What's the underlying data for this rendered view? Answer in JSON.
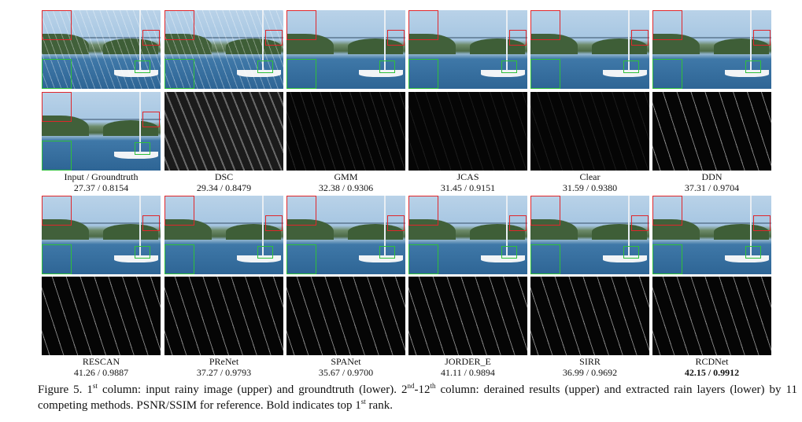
{
  "row1": [
    {
      "method": "Input / Groundtruth",
      "score": "27.37 / 0.8154"
    },
    {
      "method": "DSC",
      "score": "29.34 / 0.8479"
    },
    {
      "method": "GMM",
      "score": "32.38 / 0.9306"
    },
    {
      "method": "JCAS",
      "score": "31.45 / 0.9151"
    },
    {
      "method": "Clear",
      "score": "31.59 / 0.9380"
    },
    {
      "method": "DDN",
      "score": "37.31 / 0.9704"
    }
  ],
  "row2": [
    {
      "method": "RESCAN",
      "score": "41.26 / 0.9887"
    },
    {
      "method": "PReNet",
      "score": "37.27 / 0.9793"
    },
    {
      "method": "SPANet",
      "score": "35.67 / 0.9700"
    },
    {
      "method": "JORDER_E",
      "score": "41.11 / 0.9894"
    },
    {
      "method": "SIRR",
      "score": "36.99 / 0.9692"
    },
    {
      "method": "RCDNet",
      "score": "42.15 / 0.9912"
    }
  ],
  "caption": {
    "prefix": "Figure 5. 1",
    "sup1": "st",
    "part1": " column: input rainy image (upper) and groundtruth (lower). 2",
    "sup2": "nd",
    "part2": "-12",
    "sup3": "th",
    "part3": " column: derained results (upper) and extracted rain layers (lower) by 11 competing methods. PSNR/SSIM for reference. Bold indicates top 1",
    "sup4": "st",
    "part4": " rank."
  }
}
